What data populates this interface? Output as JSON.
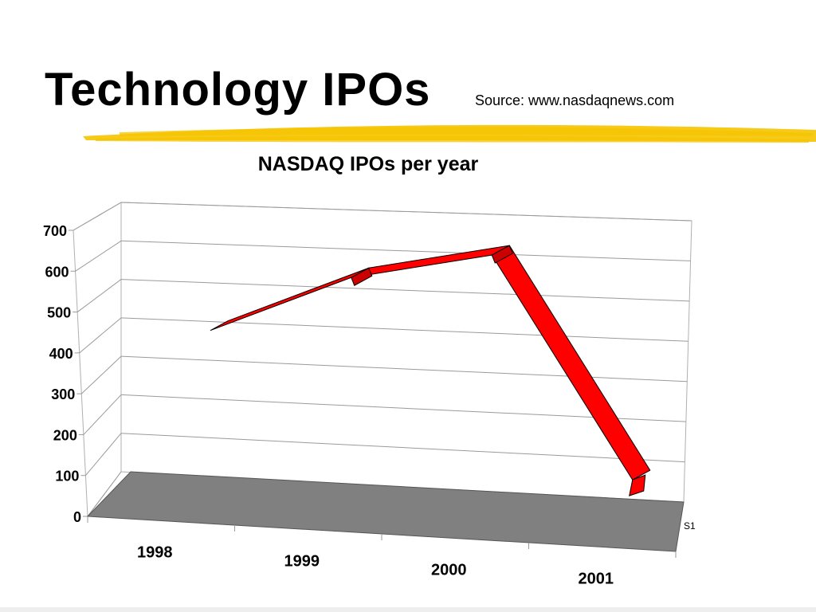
{
  "slide": {
    "title": "Technology IPOs",
    "source": "Source: www.nasdaqnews.com",
    "accent_color": "#f5c400"
  },
  "chart_data": {
    "type": "line",
    "title": "NASDAQ IPOs per year",
    "categories": [
      "1998",
      "1999",
      "2000",
      "2001"
    ],
    "series": [
      {
        "name": "S1",
        "values": [
          400,
          550,
          620,
          70
        ],
        "color": "#ff0000"
      }
    ],
    "y_ticks": [
      "0",
      "100",
      "200",
      "300",
      "400",
      "500",
      "600",
      "700"
    ],
    "ylim": [
      0,
      700
    ],
    "grid": true,
    "projection": "3d",
    "floor_color": "#808080"
  }
}
